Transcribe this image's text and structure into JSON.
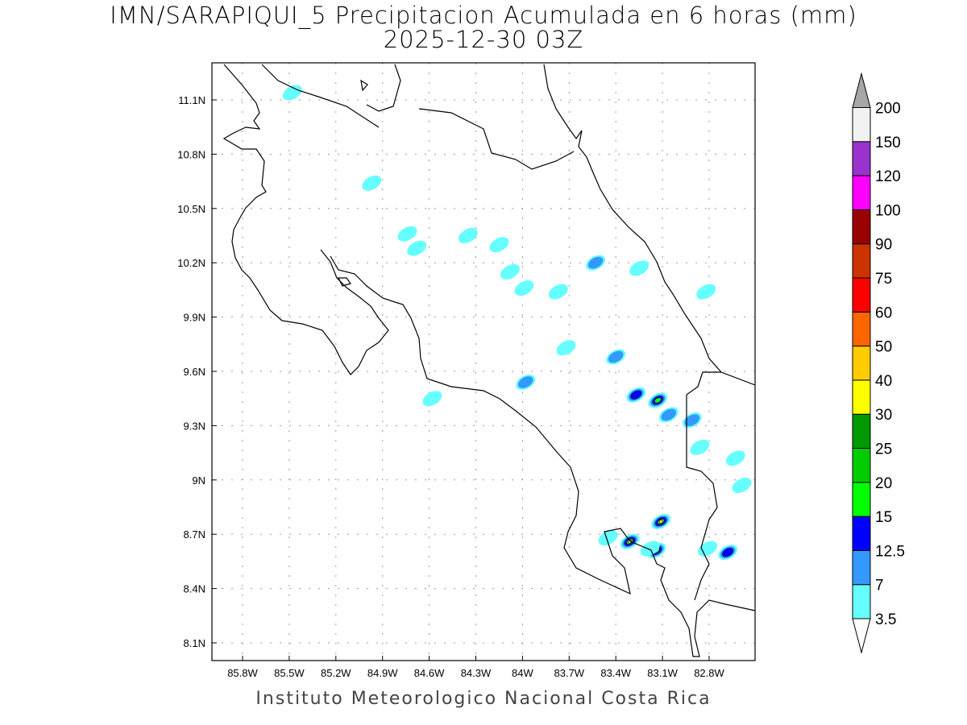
{
  "title": "IMN/SARAPIQUI_5 Precipitacion Acumulada en 6 horas (mm)",
  "subtitle": "2025-12-30 03Z",
  "footer": "Instituto Meteorologico Nacional Costa Rica",
  "map": {
    "lon_range": [
      -86.0,
      -82.45
    ],
    "lat_range": [
      8.0,
      11.3
    ],
    "grid": true,
    "lon_ticks": [
      "85.8W",
      "85.5W",
      "85.2W",
      "84.9W",
      "84.6W",
      "84.3W",
      "84W",
      "83.7W",
      "83.4W",
      "83.1W",
      "82.8W"
    ],
    "lat_ticks": [
      "11.1N",
      "10.8N",
      "10.5N",
      "10.2N",
      "9.9N",
      "9.6N",
      "9.3N",
      "9N",
      "8.7N",
      "8.4N",
      "8.1N"
    ]
  },
  "colorbar": {
    "labels": [
      "3.5",
      "7",
      "12.5",
      "15",
      "20",
      "25",
      "30",
      "40",
      "50",
      "60",
      "75",
      "90",
      "100",
      "120",
      "150",
      "200"
    ],
    "colors": [
      "#66ffff",
      "#3399ff",
      "#0000ff",
      "#00ff00",
      "#00cc00",
      "#009900",
      "#ffff00",
      "#ffcc00",
      "#ff6600",
      "#ff0000",
      "#cc3300",
      "#990000",
      "#ff00ff",
      "#9933cc",
      "#f2f2f2"
    ],
    "below_color": "#ffffff",
    "above_color": "#a6a6a6"
  },
  "precip_cells": [
    {
      "lon": -83.31,
      "lat": 8.66,
      "max_mm": 30
    },
    {
      "lon": -83.11,
      "lat": 8.77,
      "max_mm": 30
    },
    {
      "lon": -83.14,
      "lat": 8.61,
      "max_mm": 15
    },
    {
      "lon": -83.13,
      "lat": 9.44,
      "max_mm": 15
    },
    {
      "lon": -83.27,
      "lat": 9.47,
      "max_mm": 12.5
    },
    {
      "lon": -82.68,
      "lat": 8.6,
      "max_mm": 12.5
    },
    {
      "lon": -82.91,
      "lat": 9.33,
      "max_mm": 7
    },
    {
      "lon": -83.06,
      "lat": 9.36,
      "max_mm": 7
    },
    {
      "lon": -83.98,
      "lat": 9.54,
      "max_mm": 7
    },
    {
      "lon": -83.4,
      "lat": 9.68,
      "max_mm": 7
    },
    {
      "lon": -83.53,
      "lat": 10.2,
      "max_mm": 7
    },
    {
      "lon": -83.25,
      "lat": 10.17,
      "max_mm": 3.5
    },
    {
      "lon": -82.59,
      "lat": 8.97,
      "max_mm": 3.5
    },
    {
      "lon": -83.72,
      "lat": 9.73,
      "max_mm": 3.5
    },
    {
      "lon": -83.77,
      "lat": 10.04,
      "max_mm": 3.5
    },
    {
      "lon": -84.15,
      "lat": 10.3,
      "max_mm": 3.5
    },
    {
      "lon": -84.35,
      "lat": 10.35,
      "max_mm": 3.5
    },
    {
      "lon": -84.74,
      "lat": 10.36,
      "max_mm": 3.5
    },
    {
      "lon": -84.68,
      "lat": 10.28,
      "max_mm": 3.5
    },
    {
      "lon": -84.08,
      "lat": 10.15,
      "max_mm": 3.5
    },
    {
      "lon": -83.99,
      "lat": 10.06,
      "max_mm": 3.5
    },
    {
      "lon": -84.97,
      "lat": 10.64,
      "max_mm": 3.5
    },
    {
      "lon": -85.48,
      "lat": 11.14,
      "max_mm": 3.5
    },
    {
      "lon": -84.58,
      "lat": 9.45,
      "max_mm": 3.5
    },
    {
      "lon": -82.86,
      "lat": 9.18,
      "max_mm": 3.5
    },
    {
      "lon": -82.63,
      "lat": 9.12,
      "max_mm": 3.5
    },
    {
      "lon": -82.82,
      "lat": 10.04,
      "max_mm": 3.5
    },
    {
      "lon": -82.81,
      "lat": 8.62,
      "max_mm": 3.5
    },
    {
      "lon": -83.18,
      "lat": 8.62,
      "max_mm": 3.5
    },
    {
      "lon": -83.45,
      "lat": 8.68,
      "max_mm": 3.5
    }
  ]
}
